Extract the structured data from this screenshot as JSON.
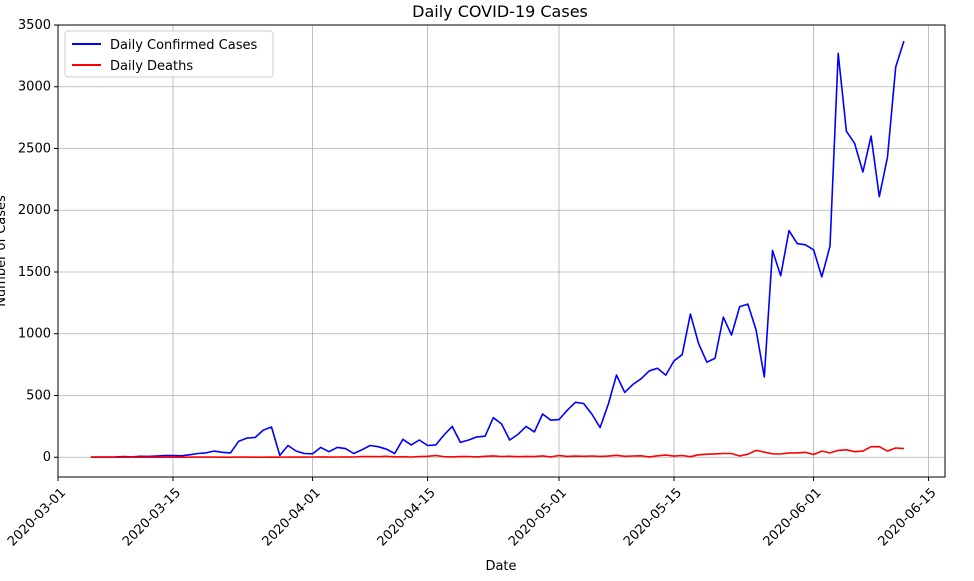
{
  "chart_data": {
    "type": "line",
    "title": "Daily COVID-19 Cases",
    "xlabel": "Date",
    "ylabel": "Number of Cases",
    "grid": true,
    "legend_position": "top-left",
    "xlim": [
      "2020-03-01",
      "2020-06-17"
    ],
    "ylim": [
      -160,
      3500
    ],
    "xticks": [
      "2020-03-01",
      "2020-03-15",
      "2020-04-01",
      "2020-04-15",
      "2020-05-01",
      "2020-05-15",
      "2020-06-01",
      "2020-06-15"
    ],
    "yticks": [
      0,
      500,
      1000,
      1500,
      2000,
      2500,
      3000,
      3500
    ],
    "x": [
      "2020-03-05",
      "2020-03-06",
      "2020-03-07",
      "2020-03-08",
      "2020-03-09",
      "2020-03-10",
      "2020-03-11",
      "2020-03-12",
      "2020-03-13",
      "2020-03-14",
      "2020-03-15",
      "2020-03-16",
      "2020-03-17",
      "2020-03-18",
      "2020-03-19",
      "2020-03-20",
      "2020-03-21",
      "2020-03-22",
      "2020-03-23",
      "2020-03-24",
      "2020-03-25",
      "2020-03-26",
      "2020-03-27",
      "2020-03-28",
      "2020-03-29",
      "2020-03-30",
      "2020-03-31",
      "2020-04-01",
      "2020-04-02",
      "2020-04-03",
      "2020-04-04",
      "2020-04-05",
      "2020-04-06",
      "2020-04-07",
      "2020-04-08",
      "2020-04-09",
      "2020-04-10",
      "2020-04-11",
      "2020-04-12",
      "2020-04-13",
      "2020-04-14",
      "2020-04-15",
      "2020-04-16",
      "2020-04-17",
      "2020-04-18",
      "2020-04-19",
      "2020-04-20",
      "2020-04-21",
      "2020-04-22",
      "2020-04-23",
      "2020-04-24",
      "2020-04-25",
      "2020-04-26",
      "2020-04-27",
      "2020-04-28",
      "2020-04-29",
      "2020-04-30",
      "2020-05-01",
      "2020-05-02",
      "2020-05-03",
      "2020-05-04",
      "2020-05-05",
      "2020-05-06",
      "2020-05-07",
      "2020-05-08",
      "2020-05-09",
      "2020-05-10",
      "2020-05-11",
      "2020-05-12",
      "2020-05-13",
      "2020-05-14",
      "2020-05-15",
      "2020-05-16",
      "2020-05-17",
      "2020-05-18",
      "2020-05-19",
      "2020-05-20",
      "2020-05-21",
      "2020-05-22",
      "2020-05-23",
      "2020-05-24",
      "2020-05-25",
      "2020-05-26",
      "2020-05-27",
      "2020-05-28",
      "2020-05-29",
      "2020-05-30",
      "2020-05-31",
      "2020-06-01",
      "2020-06-02",
      "2020-06-03",
      "2020-06-04",
      "2020-06-05",
      "2020-06-06",
      "2020-06-07",
      "2020-06-08",
      "2020-06-09",
      "2020-06-10",
      "2020-06-11",
      "2020-06-12"
    ],
    "series": [
      {
        "name": "Daily Confirmed Cases",
        "color": "#0000ff",
        "values": [
          1,
          1,
          2,
          3,
          5,
          3,
          8,
          7,
          10,
          14,
          13,
          12,
          20,
          30,
          35,
          50,
          40,
          35,
          130,
          155,
          160,
          220,
          245,
          15,
          95,
          50,
          30,
          28,
          80,
          45,
          80,
          70,
          30,
          60,
          95,
          85,
          65,
          30,
          145,
          100,
          140,
          95,
          100,
          180,
          250,
          120,
          140,
          165,
          170,
          320,
          270,
          140,
          185,
          250,
          205,
          350,
          300,
          305,
          380,
          445,
          435,
          350,
          240,
          430,
          665,
          525,
          590,
          635,
          700,
          720,
          665,
          780,
          830,
          1160,
          920,
          770,
          800,
          1135,
          990,
          1220,
          1240,
          1030,
          650,
          1675,
          1470,
          1835,
          1730,
          1720,
          1680,
          1460,
          1710,
          3270,
          2640,
          2540,
          2310,
          2600,
          2110,
          2430,
          3160,
          3370
        ]
      },
      {
        "name": "Daily Deaths",
        "color": "#ff0000",
        "values": [
          0,
          0,
          0,
          0,
          0,
          0,
          0,
          0,
          0,
          0,
          1,
          0,
          0,
          1,
          1,
          1,
          0,
          0,
          1,
          1,
          0,
          0,
          1,
          0,
          2,
          1,
          1,
          2,
          3,
          1,
          2,
          3,
          2,
          5,
          6,
          4,
          8,
          3,
          4,
          2,
          5,
          8,
          14,
          4,
          3,
          5,
          6,
          3,
          8,
          11,
          6,
          8,
          4,
          7,
          5,
          11,
          3,
          14,
          7,
          9,
          8,
          10,
          7,
          9,
          16,
          8,
          10,
          12,
          3,
          12,
          17,
          9,
          14,
          4,
          20,
          25,
          27,
          30,
          30,
          10,
          25,
          55,
          42,
          28,
          26,
          35,
          35,
          40,
          22,
          50,
          35,
          55,
          60,
          45,
          50,
          85,
          85,
          50,
          75,
          70
        ]
      }
    ]
  }
}
